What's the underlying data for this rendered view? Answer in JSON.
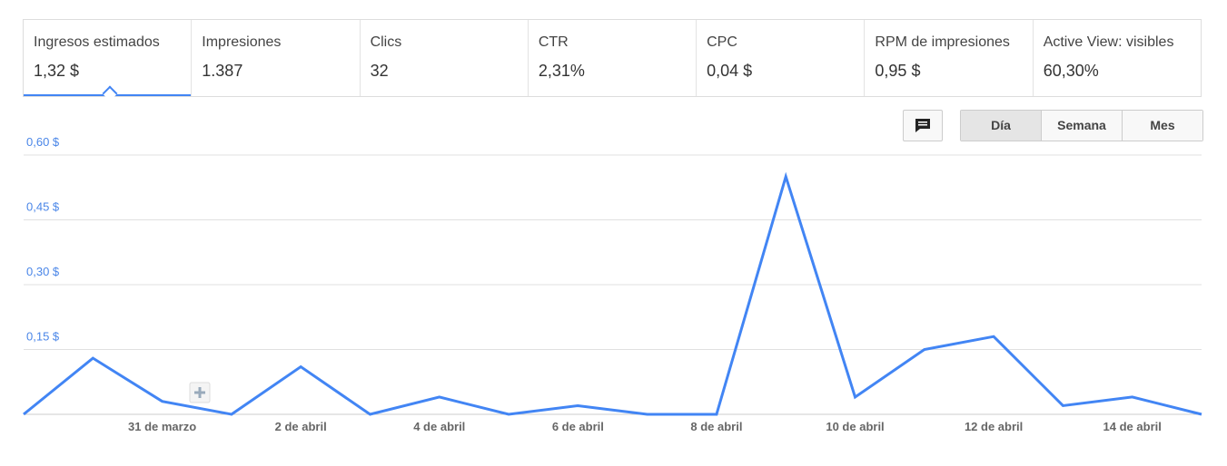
{
  "tabs": [
    {
      "label": "Ingresos estimados",
      "value": "1,32 $"
    },
    {
      "label": "Impresiones",
      "value": "1.387"
    },
    {
      "label": "Clics",
      "value": "32"
    },
    {
      "label": "CTR",
      "value": "2,31%"
    },
    {
      "label": "CPC",
      "value": "0,04 $"
    },
    {
      "label": "RPM de impresiones",
      "value": "0,95 $"
    },
    {
      "label": "Active View: visibles",
      "value": "60,30%"
    }
  ],
  "buttons": [
    "Día",
    "Semana",
    "Mes"
  ],
  "chart_data": {
    "type": "line",
    "categories": [
      null,
      null,
      "31 de marzo",
      null,
      "2 de abril",
      null,
      "4 de abril",
      null,
      "6 de abril",
      null,
      "8 de abril",
      null,
      "10 de abril",
      null,
      "12 de abril",
      null,
      "14 de abril",
      null
    ],
    "values": [
      0,
      0.13,
      0.03,
      0,
      0.11,
      0,
      0.04,
      0,
      0.02,
      0,
      0,
      0.55,
      0.04,
      0.15,
      0.18,
      0.02,
      0.04,
      0
    ],
    "color": "#4285f4",
    "ylim": [
      0,
      0.6
    ],
    "yticks": [
      {
        "value": 0.15,
        "label": "0,15 $"
      },
      {
        "value": 0.3,
        "label": "0,30 $"
      },
      {
        "value": 0.45,
        "label": "0,45 $"
      },
      {
        "value": 0.6,
        "label": "0,60 $"
      }
    ],
    "grid": true
  }
}
